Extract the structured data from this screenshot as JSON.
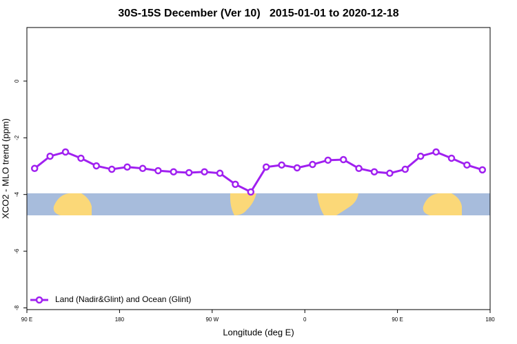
{
  "chart_data": {
    "type": "line",
    "title": "30S-15S December (Ver 10)   2015-01-01 to 2020-12-18",
    "x_label": "Longitude (deg E)",
    "y_label": "XCO2 - MLO trend (ppm)",
    "x": [
      97.5,
      112.5,
      127.5,
      142.5,
      157.5,
      172.5,
      187.5,
      202.5,
      217.5,
      232.5,
      247.5,
      262.5,
      277.5,
      292.5,
      307.5,
      322.5,
      337.5,
      352.5,
      367.5,
      382.5,
      397.5,
      412.5,
      427.5,
      442.5,
      457.5,
      472.5,
      487.5,
      502.5,
      517.5,
      532.5
    ],
    "series": [
      {
        "name": "Land (Nadir&Glint) and Ocean (Glint)",
        "color": "#a020f0",
        "values": [
          -3.08,
          -2.65,
          -2.5,
          -2.72,
          -2.99,
          -3.11,
          -3.03,
          -3.08,
          -3.16,
          -3.2,
          -3.23,
          -3.2,
          -3.25,
          -3.64,
          -3.91,
          -3.03,
          -2.96,
          -3.06,
          -2.94,
          -2.79,
          -2.77,
          -3.08,
          -3.2,
          -3.25,
          -3.11,
          -2.65,
          -2.5,
          -2.72,
          -2.96,
          -3.13
        ]
      }
    ],
    "xlim": [
      90,
      540
    ],
    "xticks": [
      {
        "value": 90,
        "label": "90 E"
      },
      180,
      {
        "value": 270,
        "label": "90 W"
      },
      {
        "value": 360,
        "label": "0"
      },
      {
        "value": 450,
        "label": "90 E"
      },
      {
        "value": 540,
        "label": "180"
      }
    ],
    "ylim": [
      -8.06,
      1.89
    ],
    "yticks": [
      0,
      -2,
      -4,
      -6,
      -8
    ],
    "legend": "bottom-left",
    "grid": false
  }
}
